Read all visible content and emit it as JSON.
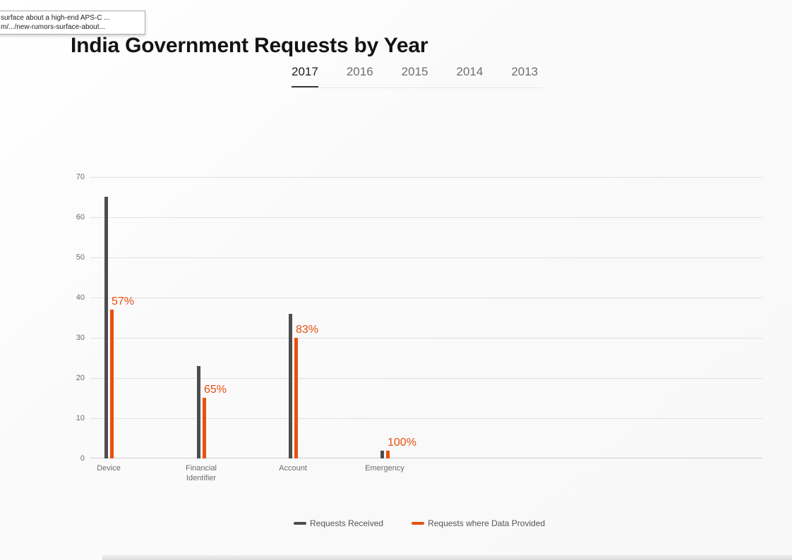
{
  "link_preview": {
    "line1": "surface about a high-end APS-C ...",
    "line2": "m/.../new-rumors-surface-about..."
  },
  "page": {
    "title": "India Government Requests by Year"
  },
  "tabs": [
    {
      "label": "2017",
      "active": true
    },
    {
      "label": "2016",
      "active": false
    },
    {
      "label": "2015",
      "active": false
    },
    {
      "label": "2014",
      "active": false
    },
    {
      "label": "2013",
      "active": false
    }
  ],
  "chart_data": {
    "type": "bar",
    "title": "India Government Requests by Year",
    "selected_year": "2017",
    "categories": [
      "Device",
      "Financial\nIdentifier",
      "Account",
      "Emergency"
    ],
    "series": [
      {
        "name": "Requests Received",
        "color": "#4d4d4d",
        "values": [
          65,
          23,
          36,
          2
        ]
      },
      {
        "name": "Requests where Data Provided",
        "color": "#e8500f",
        "values": [
          37,
          15,
          30,
          2
        ]
      }
    ],
    "percent_labels": [
      "57%",
      "65%",
      "83%",
      "100%"
    ],
    "xlabel": "",
    "ylabel": "",
    "yticks": [
      0,
      10,
      20,
      30,
      40,
      50,
      60,
      70
    ],
    "ylim": [
      0,
      70
    ],
    "grid": true,
    "legend_position": "bottom"
  },
  "colors": {
    "received_bar": "#4d4d4d",
    "provided_bar": "#e8500f",
    "gridline": "#e0e0e0",
    "axis_text": "#6b6b6b"
  }
}
